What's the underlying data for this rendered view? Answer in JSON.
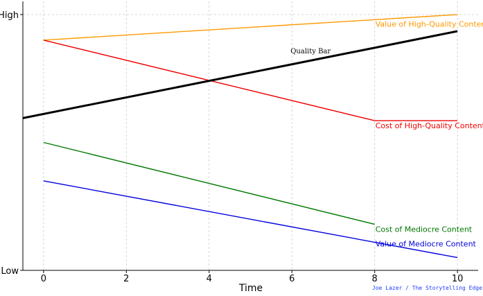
{
  "chart_data": {
    "type": "line",
    "xlabel": "Time",
    "ylabel": "",
    "xlim": [
      -0.5,
      10.5
    ],
    "ylim": [
      0,
      10
    ],
    "x_ticks": [
      0,
      2,
      4,
      6,
      8,
      10
    ],
    "y_ticks": [
      {
        "value": 0,
        "label": "Low"
      },
      {
        "value": 10,
        "label": "High"
      }
    ],
    "grid": true,
    "series": [
      {
        "name": "Value of High-Quality Content",
        "color": "#ff9900",
        "x": [
          0,
          10
        ],
        "y": [
          9.0,
          10.0
        ],
        "label_anchor": 8
      },
      {
        "name": "Cost of High-Quality Content",
        "color": "#ee0000",
        "x": [
          0,
          8,
          10
        ],
        "y": [
          9.0,
          5.85,
          5.85
        ],
        "label_anchor": 8
      },
      {
        "name": "Quality Bar",
        "color": "#000000",
        "x": [
          -0.5,
          10
        ],
        "y": [
          5.95,
          9.35
        ],
        "label_anchor": 6
      },
      {
        "name": "Cost of Mediocre Content",
        "color": "#007700",
        "x": [
          0,
          8
        ],
        "y": [
          5.0,
          1.8
        ],
        "label_anchor": 8
      },
      {
        "name": "Value of Mediocre Content",
        "color": "#0000dd",
        "x": [
          0,
          10
        ],
        "y": [
          3.5,
          0.5
        ],
        "label_anchor": 8
      }
    ],
    "annotations": [
      {
        "text": "Joe Lazer / The Storytelling Edge",
        "color": "#1a3cff"
      }
    ]
  }
}
